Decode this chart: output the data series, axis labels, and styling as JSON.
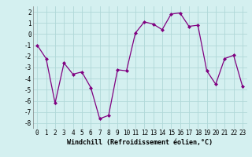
{
  "x": [
    0,
    1,
    2,
    3,
    4,
    5,
    6,
    7,
    8,
    9,
    10,
    11,
    12,
    13,
    14,
    15,
    16,
    17,
    18,
    19,
    20,
    21,
    22,
    23
  ],
  "y": [
    -1,
    -2.2,
    -6.2,
    -2.6,
    -3.6,
    -3.4,
    -4.8,
    -7.6,
    -7.3,
    -3.2,
    -3.3,
    0.1,
    1.1,
    0.9,
    0.4,
    1.8,
    1.9,
    0.7,
    0.8,
    -3.3,
    -4.5,
    -2.2,
    -1.9,
    -4.7
  ],
  "line_color": "#800080",
  "marker": "D",
  "marker_size": 2,
  "bg_color": "#d4f0f0",
  "grid_color": "#b0d8d8",
  "xlabel": "Windchill (Refroidissement éolien,°C)",
  "xlabel_fontsize": 6,
  "tick_fontsize": 5.5,
  "xlim": [
    -0.5,
    23.5
  ],
  "ylim": [
    -8.5,
    2.5
  ],
  "yticks": [
    -8,
    -7,
    -6,
    -5,
    -4,
    -3,
    -2,
    -1,
    0,
    1,
    2
  ],
  "xticks": [
    0,
    1,
    2,
    3,
    4,
    5,
    6,
    7,
    8,
    9,
    10,
    11,
    12,
    13,
    14,
    15,
    16,
    17,
    18,
    19,
    20,
    21,
    22,
    23
  ]
}
